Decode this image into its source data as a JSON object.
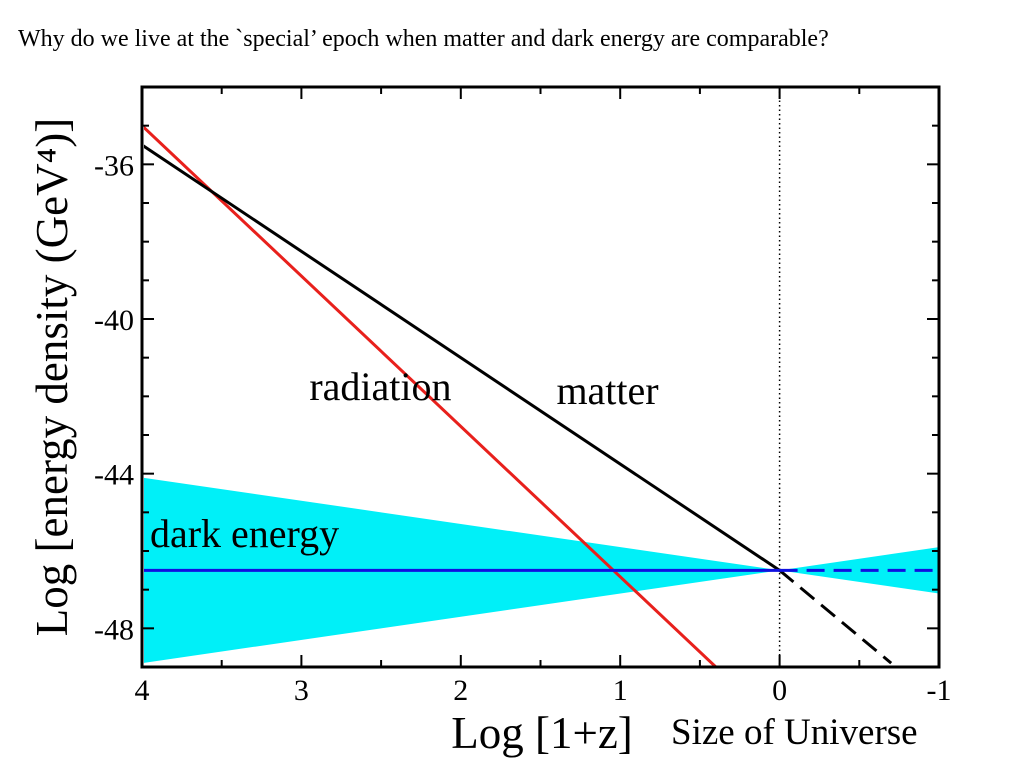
{
  "heading": "Why do we live at the `special’ epoch when matter and dark energy are comparable?",
  "extra_label": "Size of Universe",
  "chart_data": {
    "type": "line",
    "xlabel": "Log [1+z]",
    "ylabel": "Log [energy density (GeV⁴)]",
    "xlim": [
      4,
      -1
    ],
    "ylim": [
      -49,
      -34
    ],
    "x_ticks": [
      4,
      3,
      2,
      1,
      0,
      -1
    ],
    "x_tick_labels": [
      "4",
      "3",
      "2",
      "1",
      "0",
      "-1"
    ],
    "y_ticks": [
      -36,
      -40,
      -44,
      -48
    ],
    "y_tick_labels": [
      "-36",
      "-40",
      "-44",
      "-48"
    ],
    "grid": false,
    "series": [
      {
        "name": "radiation",
        "color": "#e8201c",
        "style": "solid",
        "x": [
          4,
          0.4
        ],
        "y": [
          -35.0,
          -49.0
        ]
      },
      {
        "name": "matter",
        "color": "#000000",
        "style": "solid",
        "x": [
          4,
          0
        ],
        "y": [
          -35.5,
          -46.5
        ]
      },
      {
        "name": "matter",
        "color": "#000000",
        "style": "dashed",
        "x": [
          0,
          -0.7
        ],
        "y": [
          -46.5,
          -48.9
        ]
      },
      {
        "name": "dark energy",
        "color": "#1010e0",
        "style": "solid",
        "x": [
          4,
          0
        ],
        "y": [
          -46.5,
          -46.5
        ]
      },
      {
        "name": "dark energy",
        "color": "#1010e0",
        "style": "dashed",
        "x": [
          0,
          -1
        ],
        "y": [
          -46.5,
          -46.5
        ]
      }
    ],
    "bands": [
      {
        "name": "dark energy",
        "color": "#00f0f8",
        "x": [
          4,
          0,
          -1
        ],
        "y_upper": [
          -44.1,
          -46.5,
          -45.9
        ],
        "y_lower": [
          -48.9,
          -46.5,
          -47.1
        ]
      }
    ],
    "reference_lines": [
      {
        "axis": "x",
        "value": 0,
        "style": "dotted",
        "color": "#000000"
      }
    ],
    "annotations": [
      {
        "text": "radiation",
        "x": 2.95,
        "y": -42.1
      },
      {
        "text": "matter",
        "x": 1.4,
        "y": -42.2
      },
      {
        "text": "dark energy",
        "x": 3.95,
        "y": -45.9
      }
    ]
  }
}
